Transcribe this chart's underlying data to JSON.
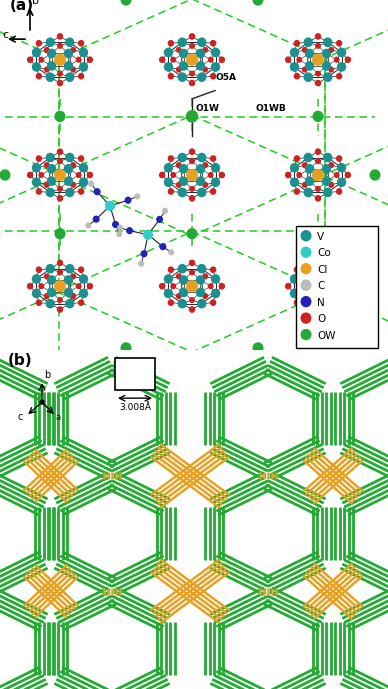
{
  "panel_a": {
    "label": "(a)",
    "V_color": "#1a9090",
    "Co_color": "#2ecece",
    "Cl_color": "#e8a020",
    "C_color": "#bbbbbb",
    "N_color": "#2222bb",
    "O_color": "#cc2222",
    "OW_color": "#22aa33",
    "dash_color": "#22cc22",
    "bond_color": "#222222",
    "legend_labels": [
      "V",
      "Co",
      "Cl",
      "C",
      "N",
      "O",
      "OW"
    ]
  },
  "panel_b": {
    "label": "(b)",
    "green_color": "#22aa33",
    "orange_color": "#e8a020",
    "annotation": "3.008Å"
  }
}
